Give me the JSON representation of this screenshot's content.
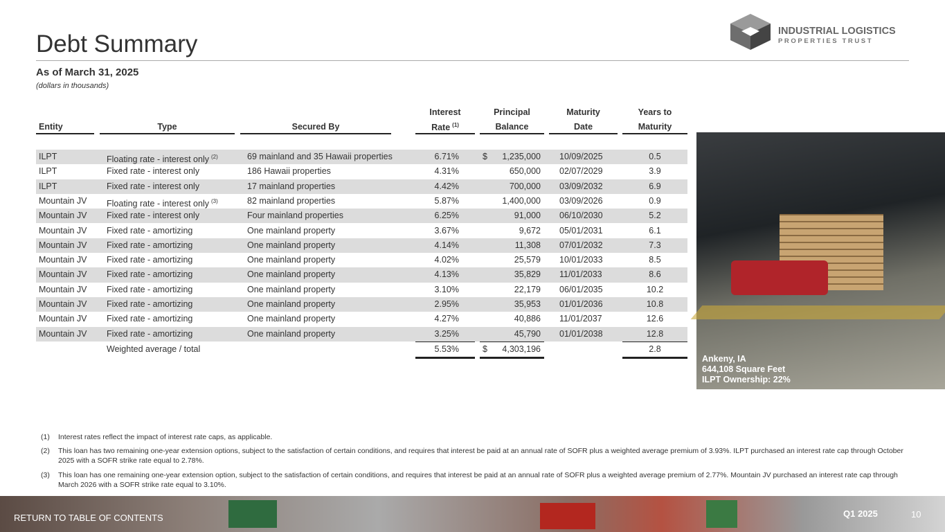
{
  "header": {
    "title": "Debt Summary",
    "subtitle": "As of March 31, 2025",
    "note": "(dollars in thousands)"
  },
  "logo": {
    "name": "INDUSTRIAL LOGISTICS",
    "tagline": "PROPERTIES TRUST"
  },
  "table": {
    "columns": [
      {
        "lines": [
          "Entity"
        ]
      },
      {
        "lines": [
          "Type"
        ]
      },
      {
        "lines": [
          "Secured By"
        ]
      },
      {
        "lines": [
          "Interest",
          "Rate"
        ],
        "note": "(1)"
      },
      {
        "lines": [
          "Principal",
          "Balance"
        ]
      },
      {
        "lines": [
          "Maturity",
          "Date"
        ]
      },
      {
        "lines": [
          "Years to",
          "Maturity"
        ]
      }
    ],
    "rows": [
      {
        "entity": "ILPT",
        "type": "Floating rate - interest only",
        "note": "(2)",
        "secured_by": "69 mainland and 35 Hawaii properties",
        "rate": "6.71%",
        "currency": "$",
        "balance": "1,235,000",
        "maturity": "10/09/2025",
        "years": "0.5"
      },
      {
        "entity": "ILPT",
        "type": "Fixed rate - interest only",
        "secured_by": "186 Hawaii properties",
        "rate": "4.31%",
        "balance": "650,000",
        "maturity": "02/07/2029",
        "years": "3.9"
      },
      {
        "entity": "ILPT",
        "type": "Fixed rate - interest only",
        "secured_by": "17 mainland properties",
        "rate": "4.42%",
        "balance": "700,000",
        "maturity": "03/09/2032",
        "years": "6.9"
      },
      {
        "entity": "Mountain JV",
        "type": "Floating rate - interest only",
        "note": "(3)",
        "secured_by": "82 mainland properties",
        "rate": "5.87%",
        "balance": "1,400,000",
        "maturity": "03/09/2026",
        "years": "0.9"
      },
      {
        "entity": "Mountain JV",
        "type": "Fixed rate - interest only",
        "secured_by": "Four mainland properties",
        "rate": "6.25%",
        "balance": "91,000",
        "maturity": "06/10/2030",
        "years": "5.2"
      },
      {
        "entity": "Mountain JV",
        "type": "Fixed rate - amortizing",
        "secured_by": "One mainland property",
        "rate": "3.67%",
        "balance": "9,672",
        "maturity": "05/01/2031",
        "years": "6.1"
      },
      {
        "entity": "Mountain JV",
        "type": "Fixed rate - amortizing",
        "secured_by": "One mainland property",
        "rate": "4.14%",
        "balance": "11,308",
        "maturity": "07/01/2032",
        "years": "7.3"
      },
      {
        "entity": "Mountain JV",
        "type": "Fixed rate - amortizing",
        "secured_by": "One mainland property",
        "rate": "4.02%",
        "balance": "25,579",
        "maturity": "10/01/2033",
        "years": "8.5"
      },
      {
        "entity": "Mountain JV",
        "type": "Fixed rate - amortizing",
        "secured_by": "One mainland property",
        "rate": "4.13%",
        "balance": "35,829",
        "maturity": "11/01/2033",
        "years": "8.6"
      },
      {
        "entity": "Mountain JV",
        "type": "Fixed rate - amortizing",
        "secured_by": "One mainland property",
        "rate": "3.10%",
        "balance": "22,179",
        "maturity": "06/01/2035",
        "years": "10.2"
      },
      {
        "entity": "Mountain JV",
        "type": "Fixed rate - amortizing",
        "secured_by": "One mainland property",
        "rate": "2.95%",
        "balance": "35,953",
        "maturity": "01/01/2036",
        "years": "10.8"
      },
      {
        "entity": "Mountain JV",
        "type": "Fixed rate - amortizing",
        "secured_by": "One mainland property",
        "rate": "4.27%",
        "balance": "40,886",
        "maturity": "11/01/2037",
        "years": "12.6"
      },
      {
        "entity": "Mountain JV",
        "type": "Fixed rate - amortizing",
        "secured_by": "One mainland property",
        "rate": "3.25%",
        "balance": "45,790",
        "maturity": "01/01/2038",
        "years": "12.8"
      }
    ],
    "total": {
      "type": "Weighted average / total",
      "rate": "5.53%",
      "currency": "$",
      "balance": "4,303,196",
      "years": "2.8"
    }
  },
  "photo": {
    "caption": [
      "Ankeny, IA",
      "644,108 Square Feet",
      "ILPT Ownership: 22%"
    ]
  },
  "footnotes": [
    {
      "marker": "(1)",
      "text": "Interest rates reflect the impact of interest rate caps, as applicable."
    },
    {
      "marker": "(2)",
      "text": "This loan has two remaining one-year extension options, subject to the satisfaction of certain conditions, and requires that interest be paid at an annual rate of SOFR plus a weighted average premium of 3.93%. ILPT purchased an interest rate cap through October 2025 with a SOFR strike rate equal to 2.78%."
    },
    {
      "marker": "(3)",
      "text": "This loan has one remaining one-year extension option, subject to the satisfaction of certain conditions, and requires that interest be paid at an annual rate of SOFR plus a weighted average premium of 2.77%. Mountain JV purchased an interest rate cap through March 2026 with a SOFR strike rate equal to 3.10%."
    }
  ],
  "footer": {
    "link": "RETURN TO TABLE OF CONTENTS",
    "period": "Q1 2025",
    "page": "10"
  }
}
